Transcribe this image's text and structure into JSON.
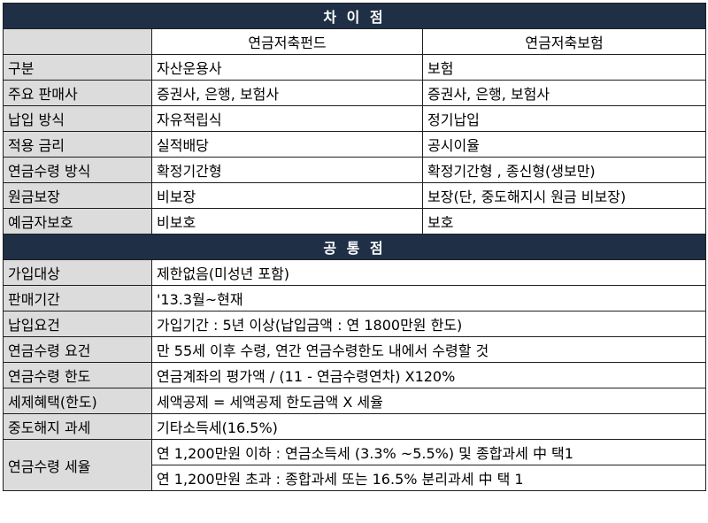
{
  "differences": {
    "title": "차 이 점",
    "col_fund": "연금저축펀드",
    "col_insurance": "연금저축보험",
    "rows": [
      {
        "label": "구분",
        "fund": "자산운용사",
        "insurance": "보험"
      },
      {
        "label": "주요 판매사",
        "fund": "증권사, 은행, 보험사",
        "insurance": "증권사, 은행, 보험사"
      },
      {
        "label": "납입 방식",
        "fund": "자유적립식",
        "insurance": "정기납입"
      },
      {
        "label": "적용 금리",
        "fund": "실적배당",
        "insurance": "공시이율"
      },
      {
        "label": "연금수령 방식",
        "fund": "확정기간형",
        "insurance": "확정기간형 , 종신형(생보만)"
      },
      {
        "label": "원금보장",
        "fund": "비보장",
        "insurance": "보장(단, 중도해지시 원금 비보장)"
      },
      {
        "label": "예금자보호",
        "fund": "비보호",
        "insurance": "보호"
      }
    ]
  },
  "commons": {
    "title": "공 통 점",
    "rows": [
      {
        "label": "가입대상",
        "value": "제한없음(미성년 포함)"
      },
      {
        "label": "판매기간",
        "value": "'13.3월~현재"
      },
      {
        "label": "납입요건",
        "value": "가입기간 : 5년 이상(납입금액 : 연 1800만원 한도)"
      },
      {
        "label": "연금수령 요건",
        "value": "만 55세 이후 수령, 연간 연금수령한도 내에서 수령할 것"
      },
      {
        "label": "연금수령 한도",
        "value": "연금계좌의 평가액 / (11 - 연금수령연차) X120%"
      },
      {
        "label": "세제혜택(한도)",
        "value": "세액공제 = 세액공제 한도금액 X 세율"
      },
      {
        "label": "중도해지 과세",
        "value": "기타소득세(16.5%)"
      }
    ],
    "tax_label": "연금수령 세율",
    "tax_rows": [
      "연 1,200만원 이하 : 연금소득세 (3.3% ~5.5%) 및 종합과세 中 택1",
      "연 1,200만원 초과 : 종합과세 또는 16.5% 분리과세 中 택 1"
    ]
  },
  "colors": {
    "section_header": "#1f3046",
    "label_cell": "#dcdcdc",
    "border": "#1f1f1f"
  }
}
